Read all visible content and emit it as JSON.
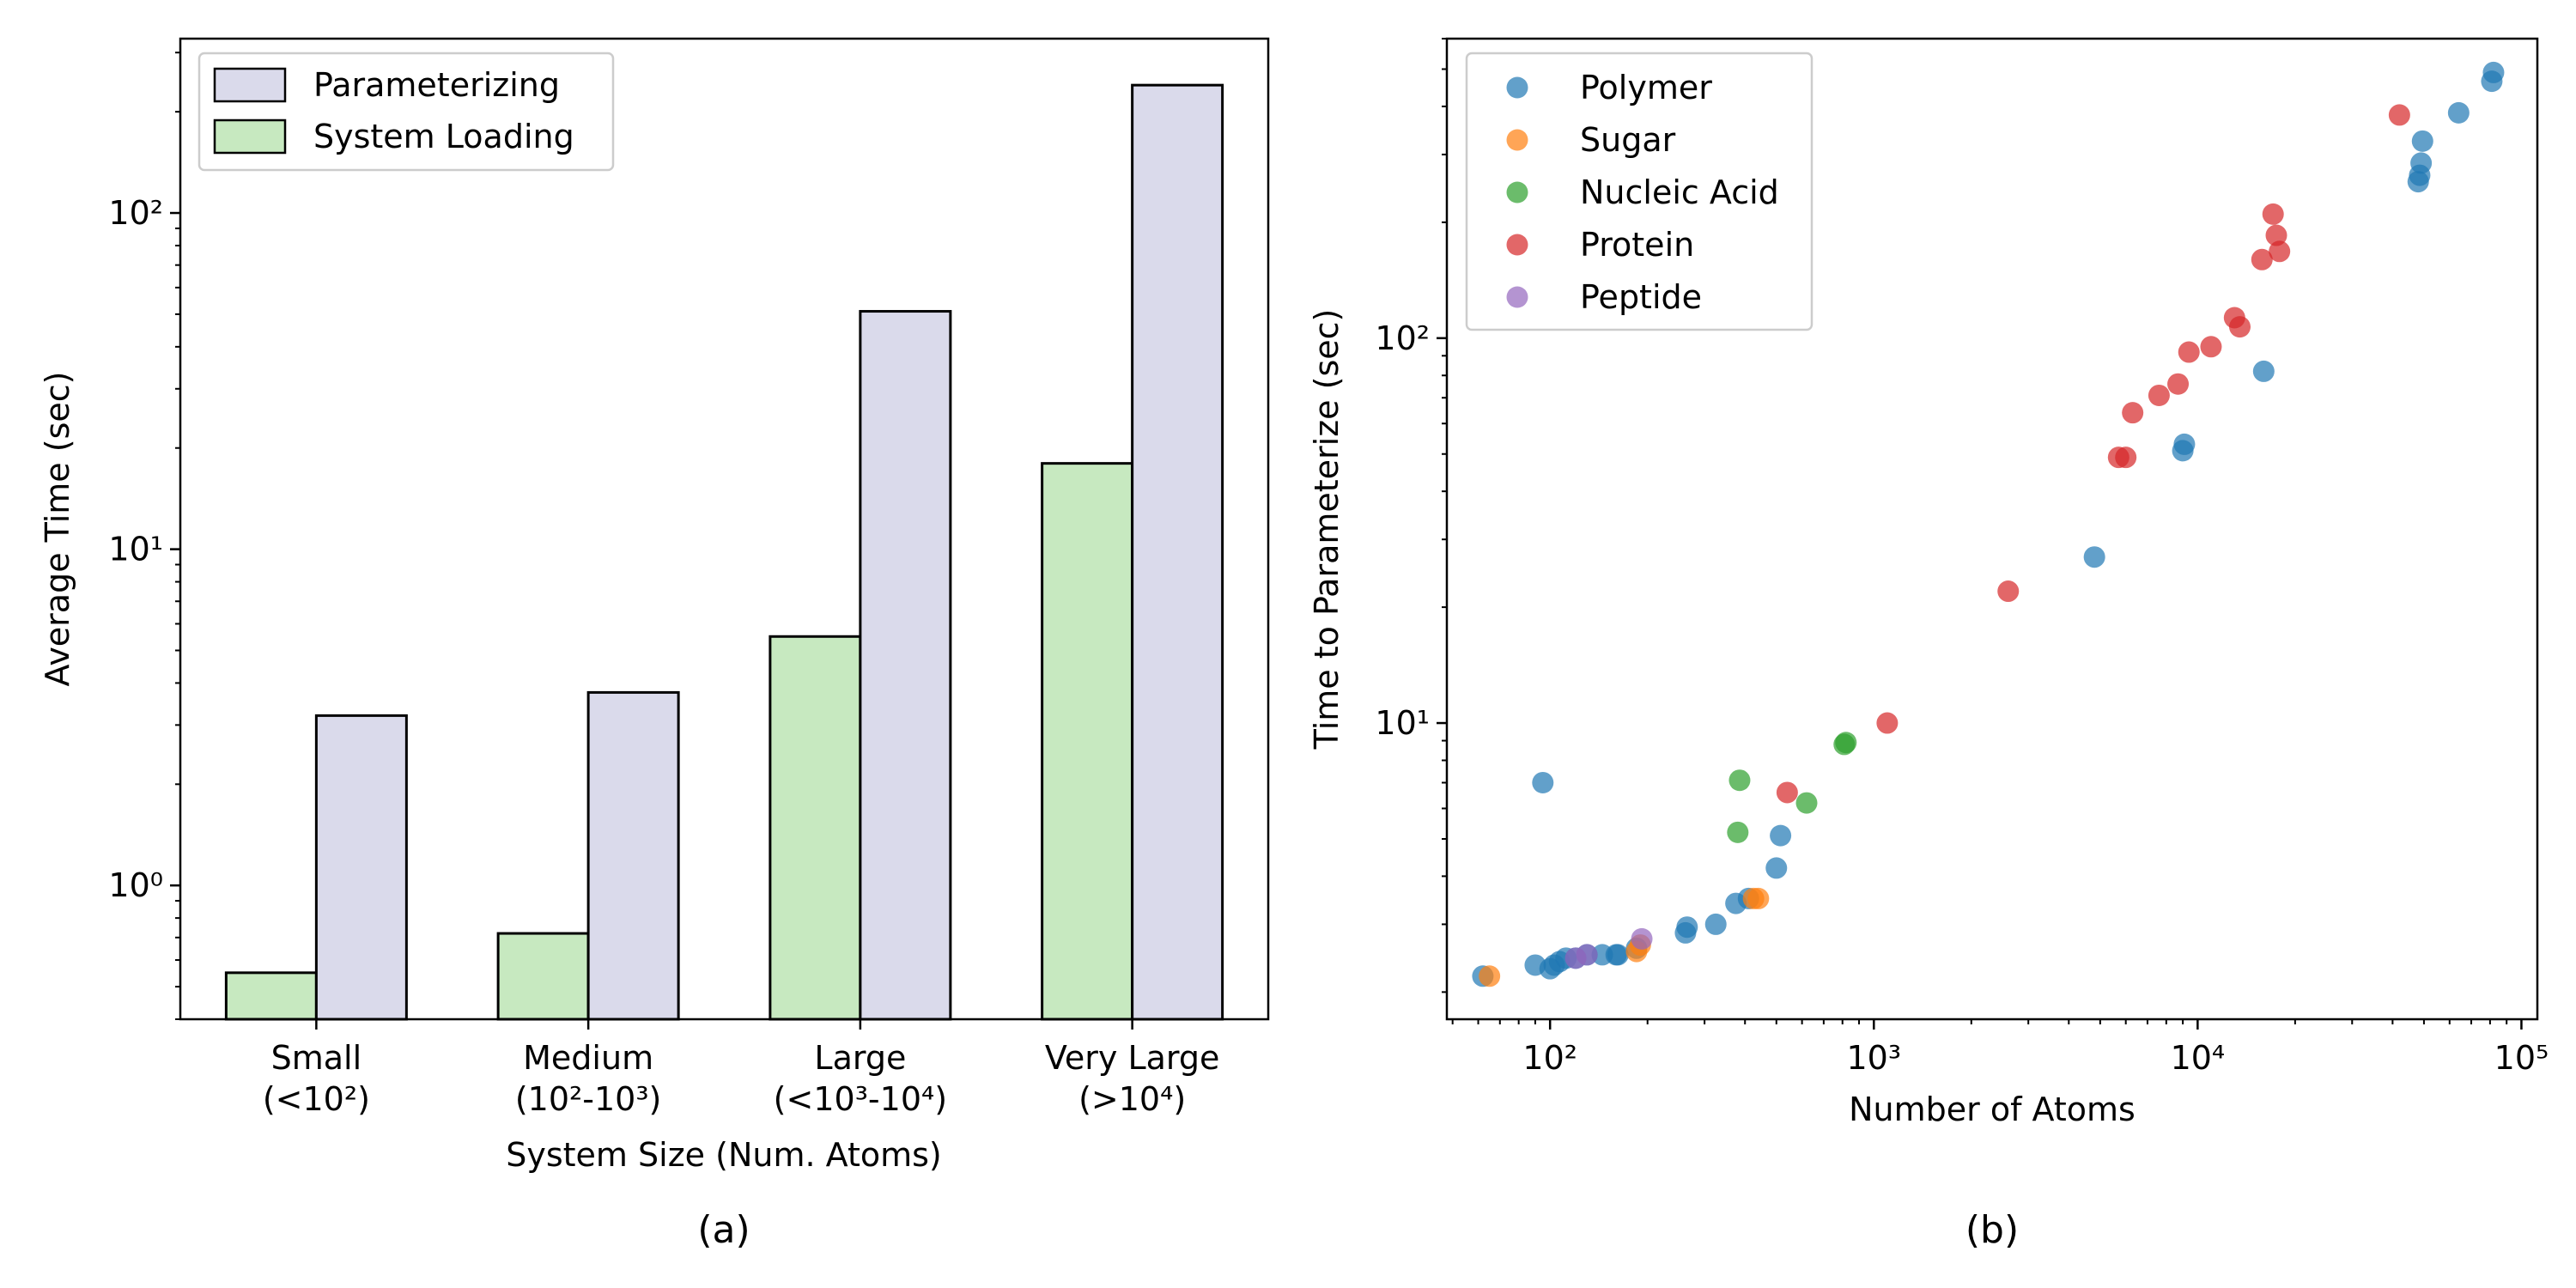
{
  "chart_data": [
    {
      "panel_label": "(a)",
      "type": "bar",
      "xlabel": "System Size (Num. Atoms)",
      "ylabel": "Average Time (sec)",
      "y_scale": "log",
      "ylim": [
        0.4,
        330
      ],
      "grid": false,
      "legend_position": "top-left",
      "categories": [
        {
          "line1": "Small",
          "line2": "(<10²)"
        },
        {
          "line1": "Medium",
          "line2": "(10²-10³)"
        },
        {
          "line1": "Large",
          "line2": "(<10³-10⁴)"
        },
        {
          "line1": "Very Large",
          "line2": "(>10⁴)"
        }
      ],
      "y_ticks": [
        {
          "label": "10⁰",
          "value": 1
        },
        {
          "label": "10¹",
          "value": 10
        },
        {
          "label": "10²",
          "value": 100
        }
      ],
      "series": [
        {
          "name": "System Loading",
          "color": "#c7e9c0",
          "values": [
            0.55,
            0.72,
            5.5,
            18
          ]
        },
        {
          "name": "Parameterizing",
          "color": "#dadaeb",
          "values": [
            3.2,
            3.75,
            51,
            240
          ]
        }
      ],
      "legend": [
        {
          "name": "Parameterizing",
          "color": "#dadaeb"
        },
        {
          "name": "System Loading",
          "color": "#c7e9c0"
        }
      ]
    },
    {
      "panel_label": "(b)",
      "type": "scatter",
      "xlabel": "Number of Atoms",
      "ylabel": "Time to Parameterize (sec)",
      "x_scale": "log",
      "y_scale": "log",
      "xlim": [
        48,
        112000
      ],
      "ylim": [
        1.7,
        600
      ],
      "grid": false,
      "legend_position": "top-left",
      "x_ticks": [
        {
          "label": "10²",
          "value": 100
        },
        {
          "label": "10³",
          "value": 1000
        },
        {
          "label": "10⁴",
          "value": 10000
        },
        {
          "label": "10⁵",
          "value": 100000
        }
      ],
      "y_ticks": [
        {
          "label": "10¹",
          "value": 10
        },
        {
          "label": "10²",
          "value": 100
        }
      ],
      "series": [
        {
          "name": "Polymer",
          "color": "#1f77b4",
          "points": [
            [
              62,
              2.2
            ],
            [
              90,
              2.35
            ],
            [
              95,
              7.0
            ],
            [
              100,
              2.3
            ],
            [
              103,
              2.35
            ],
            [
              107,
              2.4
            ],
            [
              112,
              2.45
            ],
            [
              120,
              2.45
            ],
            [
              130,
              2.5
            ],
            [
              145,
              2.5
            ],
            [
              160,
              2.5
            ],
            [
              162,
              2.5
            ],
            [
              185,
              2.6
            ],
            [
              262,
              2.85
            ],
            [
              265,
              2.95
            ],
            [
              325,
              3.0
            ],
            [
              375,
              3.4
            ],
            [
              410,
              3.5
            ],
            [
              500,
              4.2
            ],
            [
              515,
              5.1
            ],
            [
              4800,
              27
            ],
            [
              9000,
              51
            ],
            [
              9100,
              53
            ],
            [
              16000,
              82
            ],
            [
              48000,
              255
            ],
            [
              48500,
              265
            ],
            [
              49000,
              285
            ],
            [
              49500,
              325
            ],
            [
              64000,
              385
            ],
            [
              81000,
              465
            ],
            [
              82000,
              490
            ]
          ]
        },
        {
          "name": "Sugar",
          "color": "#ff7f0e",
          "points": [
            [
              65,
              2.2
            ],
            [
              185,
              2.55
            ],
            [
              190,
              2.65
            ],
            [
              425,
              3.5
            ],
            [
              440,
              3.5
            ]
          ]
        },
        {
          "name": "Nucleic Acid",
          "color": "#2ca02c",
          "points": [
            [
              380,
              5.2
            ],
            [
              385,
              7.1
            ],
            [
              620,
              6.2
            ],
            [
              810,
              8.8
            ],
            [
              820,
              8.9
            ]
          ]
        },
        {
          "name": "Protein",
          "color": "#d62728",
          "points": [
            [
              540,
              6.6
            ],
            [
              1100,
              10
            ],
            [
              2600,
              22
            ],
            [
              5700,
              49
            ],
            [
              6000,
              49
            ],
            [
              6300,
              64
            ],
            [
              7600,
              71
            ],
            [
              8700,
              76
            ],
            [
              9400,
              92
            ],
            [
              11000,
              95
            ],
            [
              13000,
              113
            ],
            [
              13500,
              107
            ],
            [
              15800,
              160
            ],
            [
              17100,
              210
            ],
            [
              17500,
              185
            ],
            [
              17900,
              168
            ],
            [
              42000,
              380
            ]
          ]
        },
        {
          "name": "Peptide",
          "color": "#9467bd",
          "points": [
            [
              120,
              2.45
            ],
            [
              130,
              2.5
            ],
            [
              192,
              2.75
            ]
          ]
        }
      ]
    }
  ]
}
